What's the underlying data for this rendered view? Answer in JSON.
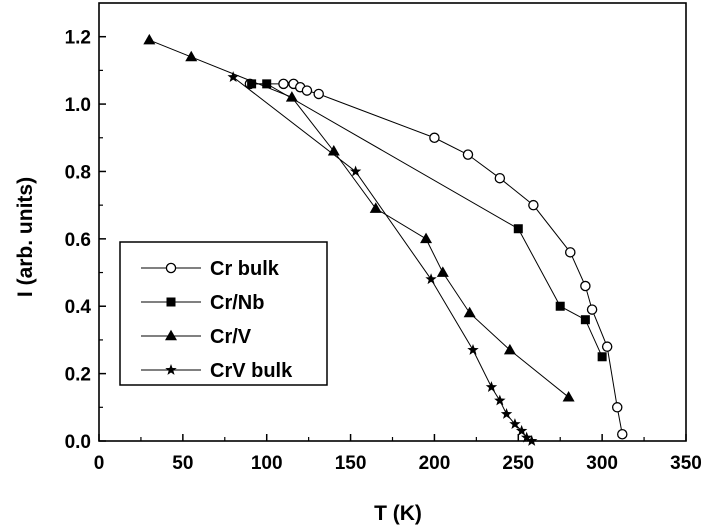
{
  "chart_data": {
    "type": "scatter",
    "title": "",
    "xlabel": "T (K)",
    "ylabel": "I (arb. units)",
    "xlim": [
      0,
      350
    ],
    "ylim": [
      0,
      1.3
    ],
    "xticks": [
      0,
      50,
      100,
      150,
      200,
      250,
      300,
      350
    ],
    "yticks": [
      0.0,
      0.2,
      0.4,
      0.6,
      0.8,
      1.0,
      1.2
    ],
    "xtick_labels": [
      "0",
      "50",
      "100",
      "150",
      "200",
      "250",
      "300",
      "350"
    ],
    "ytick_labels": [
      "0.0",
      "0.2",
      "0.4",
      "0.6",
      "0.8",
      "1.0",
      "1.2"
    ],
    "grid": false,
    "legend_position": "left",
    "series": [
      {
        "name": "Cr bulk",
        "marker": "open-circle",
        "color": "#000000",
        "x": [
          90,
          110,
          116,
          120,
          124,
          131,
          200,
          220,
          239,
          259,
          281,
          290,
          294,
          303,
          309,
          312
        ],
        "y": [
          1.06,
          1.06,
          1.06,
          1.05,
          1.04,
          1.03,
          0.9,
          0.85,
          0.78,
          0.7,
          0.56,
          0.46,
          0.39,
          0.28,
          0.1,
          0.02
        ]
      },
      {
        "name": "Cr/Nb",
        "marker": "filled-square",
        "color": "#000000",
        "x": [
          91,
          100,
          250,
          275,
          290,
          300
        ],
        "y": [
          1.06,
          1.06,
          0.63,
          0.4,
          0.36,
          0.25
        ]
      },
      {
        "name": "Cr/V",
        "marker": "filled-triangle",
        "color": "#000000",
        "x": [
          30,
          55,
          115,
          140,
          165,
          195,
          205,
          221,
          245,
          280
        ],
        "y": [
          1.19,
          1.14,
          1.02,
          0.86,
          0.69,
          0.6,
          0.5,
          0.38,
          0.27,
          0.13
        ]
      },
      {
        "name": "CrV bulk",
        "marker": "filled-star",
        "color": "#000000",
        "x": [
          80,
          153,
          198,
          223,
          234,
          239,
          243,
          248,
          252,
          255,
          258
        ],
        "y": [
          1.08,
          0.8,
          0.48,
          0.27,
          0.16,
          0.12,
          0.08,
          0.05,
          0.03,
          0.01,
          0.0
        ]
      }
    ]
  }
}
